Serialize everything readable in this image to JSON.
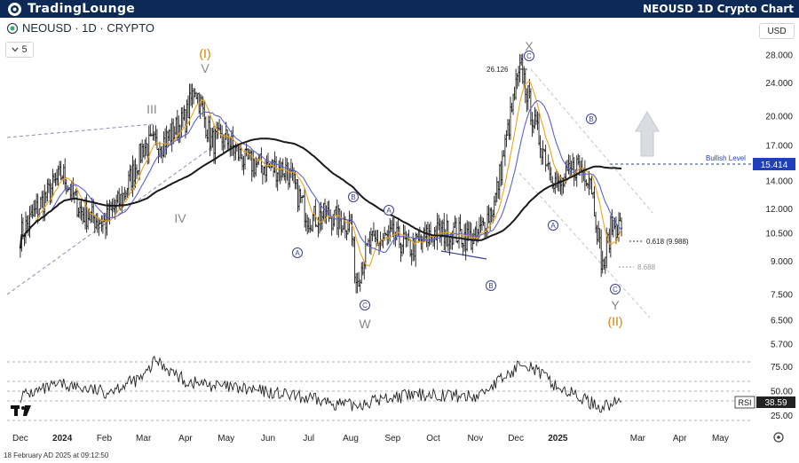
{
  "header": {
    "brand": "TradingLounge",
    "title": "NEOUSD 1D Crypto Chart"
  },
  "symbol": {
    "label": "NEOUSD · 1D · CRYPTO",
    "interval": "5",
    "currency": "USD"
  },
  "footer": {
    "timestamp": "18 February AD 2025 at 09:12:50"
  },
  "colors": {
    "header_bg": "#0c2a55",
    "bullish_level": "#1f3fbf",
    "ma_long": "#1a1a1a",
    "ma_mid": "#5b63d6",
    "ma_short": "#f0a21e",
    "wave_label_orange": "#e07b00",
    "channel_dashed": "#a9a9b8"
  },
  "chart_data": [
    {
      "type": "candlestick",
      "title": "NEOUSD · 1D · CRYPTO",
      "price_axis": {
        "scale": "log",
        "ylim": [
          5.3,
          31
        ],
        "ticks": [
          "28.000",
          "24.000",
          "20.000",
          "17.000",
          "14.000",
          "12.000",
          "10.500",
          "9.000",
          "7.500",
          "6.500",
          "5.700"
        ]
      },
      "time_axis": {
        "ticks": [
          "Dec",
          "2024",
          "Feb",
          "Mar",
          "Apr",
          "May",
          "Jun",
          "Jul",
          "Aug",
          "Sep",
          "Oct",
          "Nov",
          "Dec",
          "2025",
          "Mar",
          "Apr",
          "May"
        ],
        "bold_ticks": [
          "2024",
          "2025"
        ]
      },
      "series": [
        {
          "kind": "close",
          "x": [
            "2023-12-01",
            "2023-12-15",
            "2024-01-01",
            "2024-01-15",
            "2024-02-01",
            "2024-02-15",
            "2024-03-01",
            "2024-03-15",
            "2024-04-01",
            "2024-04-08",
            "2024-04-20",
            "2024-05-01",
            "2024-05-15",
            "2024-06-01",
            "2024-06-15",
            "2024-07-01",
            "2024-07-15",
            "2024-08-01",
            "2024-08-05",
            "2024-08-15",
            "2024-09-01",
            "2024-09-15",
            "2024-10-01",
            "2024-10-15",
            "2024-11-01",
            "2024-11-15",
            "2024-12-01",
            "2024-12-05",
            "2024-12-15",
            "2025-01-01",
            "2025-01-15",
            "2025-01-25",
            "2025-02-03",
            "2025-02-10",
            "2025-02-17"
          ],
          "values": [
            10.4,
            12.2,
            14.6,
            11.8,
            11.1,
            12.9,
            16.9,
            17.3,
            19.7,
            23.6,
            17.4,
            17.6,
            15.6,
            15.1,
            14.9,
            11.4,
            11.6,
            11.0,
            8.1,
            9.9,
            10.3,
            9.7,
            10.5,
            10.6,
            10.1,
            12.3,
            23.3,
            26.1,
            18.9,
            13.4,
            15.3,
            14.4,
            8.7,
            11.1,
            10.8
          ]
        },
        {
          "name": "",
          "kind": "moving-average",
          "color": "#1a1a1a"
        },
        {
          "name": "",
          "kind": "moving-average",
          "color": "#5b63d6"
        },
        {
          "name": "",
          "kind": "moving-average",
          "color": "#f0a21e"
        }
      ],
      "annotations": {
        "last_price": "15.414",
        "bullish_level_label": "Bullish Level",
        "bullish_level_value": 15.414,
        "high_label": "26.126",
        "fib_label": "0.618 (9.988)",
        "low_label": "8.688",
        "wave_labels": [
          {
            "text": "III",
            "color": "#888888"
          },
          {
            "text": "IV",
            "color": "#888888"
          },
          {
            "text": "(I)",
            "color": "#e07b00"
          },
          {
            "text": "V",
            "color": "#888888"
          },
          {
            "text": "W",
            "color": "#888888"
          },
          {
            "text": "X",
            "color": "#888888"
          },
          {
            "text": "Y",
            "color": "#888888"
          },
          {
            "text": "(II)",
            "color": "#e07b00"
          }
        ],
        "circled_labels": [
          "A",
          "B",
          "A",
          "C",
          "B",
          "A",
          "B",
          "C",
          "C",
          "A",
          "B",
          "C"
        ]
      }
    },
    {
      "type": "line",
      "title": "RSI",
      "ylim": [
        15,
        90
      ],
      "ticks": [
        "75.00",
        "50.00",
        "25.00"
      ],
      "levels": [
        80,
        60,
        50,
        40,
        20
      ],
      "current_value": "38.59",
      "series_label": "RSI",
      "x": [
        "2023-12-01",
        "2024-01-01",
        "2024-02-01",
        "2024-03-01",
        "2024-03-10",
        "2024-04-01",
        "2024-05-01",
        "2024-06-01",
        "2024-07-01",
        "2024-08-01",
        "2024-09-01",
        "2024-10-01",
        "2024-11-01",
        "2024-12-01",
        "2024-12-05",
        "2025-01-01",
        "2025-02-01",
        "2025-02-17"
      ],
      "values": [
        45,
        57,
        49,
        64,
        82,
        60,
        54,
        49,
        42,
        35,
        44,
        47,
        44,
        72,
        83,
        54,
        34,
        39
      ]
    }
  ]
}
